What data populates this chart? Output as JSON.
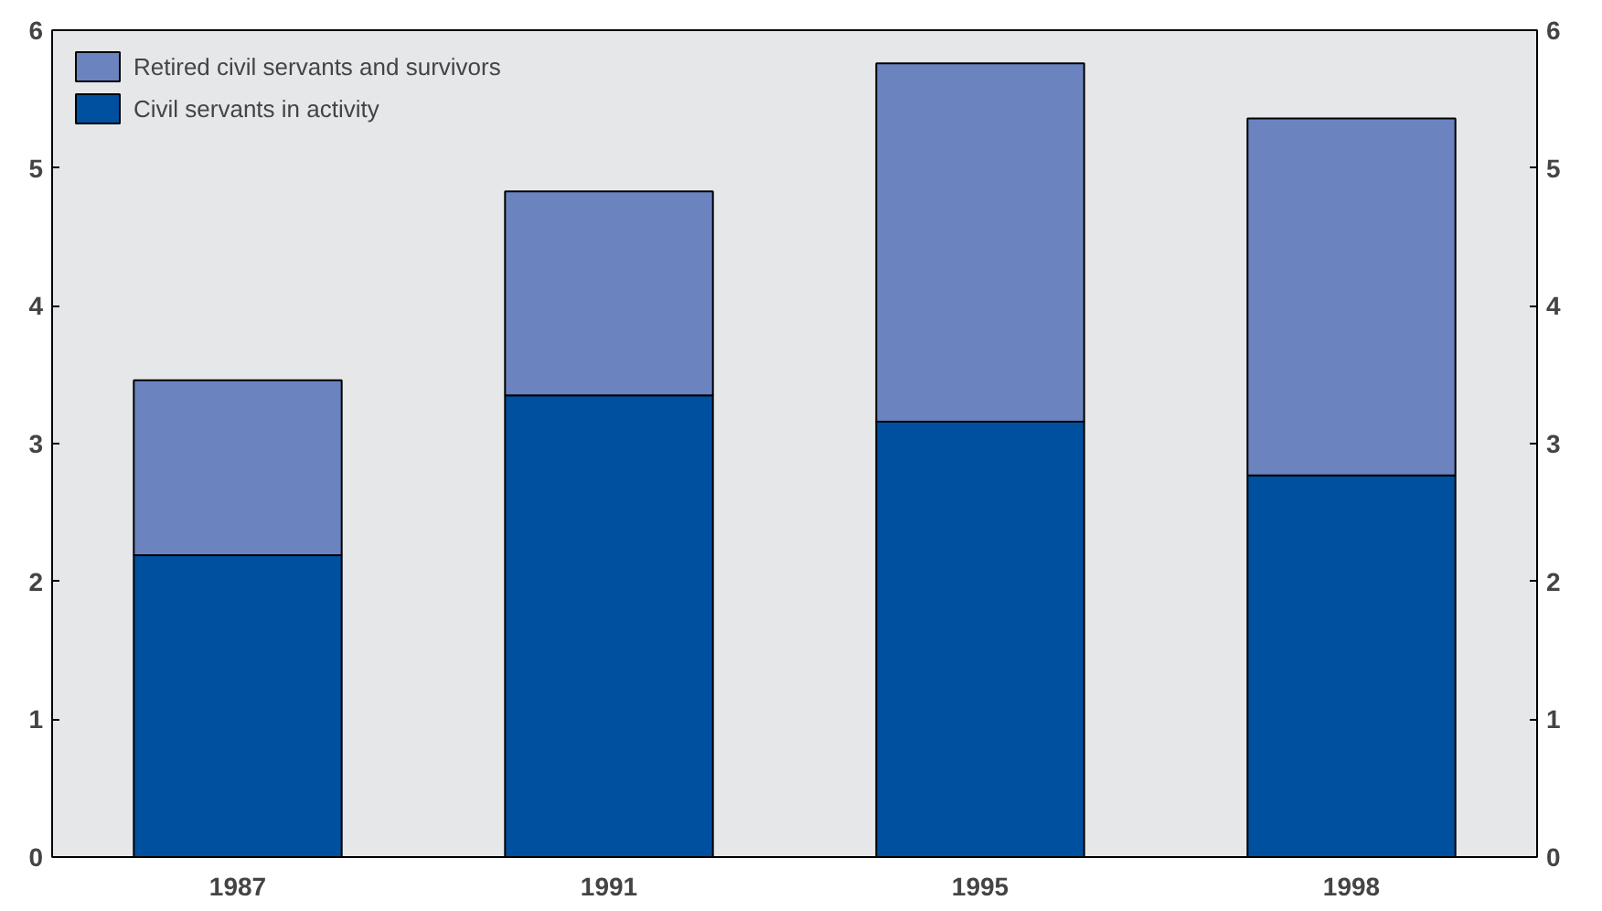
{
  "chart_data": {
    "type": "bar",
    "stacked": true,
    "categories": [
      "1987",
      "1991",
      "1995",
      "1998"
    ],
    "series": [
      {
        "name": "Civil servants in activity",
        "color": "#0050a0",
        "values": [
          2.19,
          3.35,
          3.16,
          2.77
        ]
      },
      {
        "name": "Retired civil servants and survivors",
        "color": "#6b84c0",
        "values": [
          1.27,
          1.48,
          2.6,
          2.59
        ]
      }
    ],
    "ylim": [
      0,
      6
    ],
    "yticks": [
      0,
      1,
      2,
      3,
      4,
      5,
      6
    ],
    "y2lim": [
      0,
      6
    ],
    "y2ticks": [
      0,
      1,
      2,
      3,
      4,
      5,
      6
    ],
    "grid": false,
    "legend": "top left"
  }
}
